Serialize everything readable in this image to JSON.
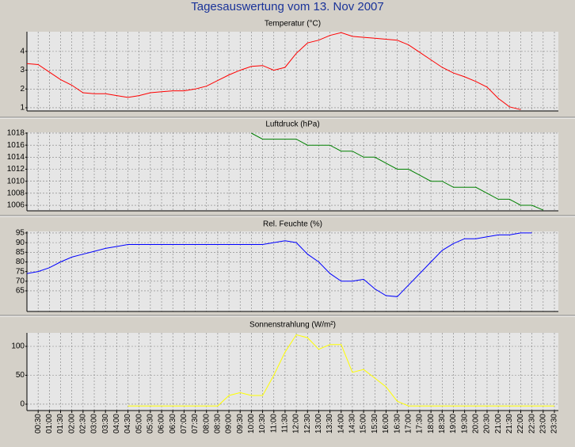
{
  "title": "Tagesauswertung vom 13. Nov 2007",
  "chart_data": [
    {
      "type": "line",
      "title": "Temperatur (°C)",
      "color": "#ff0000",
      "grid": true,
      "ylim": [
        0.83,
        5.05
      ],
      "yticks": [
        1,
        2,
        3,
        4
      ],
      "values": [
        3.35,
        3.3,
        2.9,
        2.5,
        2.2,
        1.8,
        1.75,
        1.75,
        1.65,
        1.55,
        1.65,
        1.8,
        1.85,
        1.9,
        1.9,
        2.0,
        2.15,
        2.45,
        2.75,
        3.0,
        3.2,
        3.25,
        3.0,
        3.15,
        3.9,
        4.45,
        4.6,
        4.85,
        5.0,
        4.8,
        4.75,
        4.7,
        4.65,
        4.6,
        4.35,
        3.95,
        3.55,
        3.15,
        2.85,
        2.65,
        2.4,
        2.1,
        1.5,
        1.05,
        0.9,
        null,
        null,
        null
      ]
    },
    {
      "type": "line",
      "title": "Luftdruck (hPa)",
      "color": "#008000",
      "grid": true,
      "ylim": [
        1005.08,
        1018.13
      ],
      "yticks": [
        1006,
        1008,
        1010,
        1012,
        1014,
        1016,
        1018
      ],
      "values": [
        null,
        null,
        null,
        null,
        null,
        null,
        null,
        null,
        null,
        null,
        null,
        null,
        null,
        null,
        null,
        null,
        null,
        null,
        null,
        null,
        1018,
        1017,
        1017,
        1017,
        1017,
        1016,
        1016,
        1016,
        1015,
        1015,
        1014,
        1014,
        1013,
        1012,
        1012,
        1011,
        1010,
        1010,
        1009,
        1009,
        1009,
        1008,
        1007,
        1007,
        1006,
        1006,
        1005.2,
        null
      ]
    },
    {
      "type": "line",
      "title": "Rel. Feuchte (%)",
      "color": "#0000ff",
      "grid": true,
      "ylim": [
        54.3,
        95.8
      ],
      "yticks": [
        65,
        70,
        75,
        80,
        85,
        90,
        95
      ],
      "values": [
        74,
        75,
        77,
        80,
        82.5,
        84,
        85.5,
        87,
        88,
        89,
        89,
        89,
        89,
        89,
        89,
        89,
        89,
        89,
        89,
        89,
        89,
        89,
        90,
        91,
        90,
        84,
        80,
        74,
        70,
        70,
        71,
        66,
        62.5,
        62,
        68,
        74,
        80,
        86,
        89.5,
        92,
        92,
        93,
        94,
        94,
        95,
        95,
        null,
        null
      ]
    },
    {
      "type": "line",
      "title": "Sonnenstrahlung (W/m²)",
      "color": "#ffff00",
      "grid": true,
      "ylim": [
        -11,
        123.3
      ],
      "yticks": [
        0,
        50,
        100
      ],
      "values": [
        null,
        null,
        null,
        null,
        null,
        null,
        null,
        null,
        null,
        -3,
        -3,
        -3,
        -3,
        -3,
        -3,
        -3,
        -3,
        -3,
        15,
        20,
        15,
        15,
        50,
        90,
        120,
        115,
        95,
        103,
        103,
        55,
        60,
        45,
        30,
        5,
        -3,
        -3,
        -3,
        -3,
        -3,
        -3,
        -3,
        -3,
        -3,
        -3,
        -3,
        -3,
        -3,
        -3
      ],
      "categories": [
        null,
        "00:30",
        "01:00",
        "01:30",
        "02:00",
        "02:30",
        "03:00",
        "03:30",
        "04:00",
        "04:30",
        "05:00",
        "05:30",
        "06:00",
        "06:30",
        "07:00",
        "07:30",
        "08:00",
        "08:30",
        "09:00",
        "09:30",
        "10:00",
        "10:30",
        "11:00",
        "11:30",
        "12:00",
        "12:30",
        "13:00",
        "13:30",
        "14:00",
        "14:30",
        "15:00",
        "15:30",
        "16:00",
        "16:30",
        "17:00",
        "17:30",
        "18:00",
        "18:30",
        "19:00",
        "19:30",
        "20:00",
        "20:30",
        "21:00",
        "21:30",
        "22:00",
        "22:30",
        "23:00",
        "23:30"
      ]
    }
  ]
}
